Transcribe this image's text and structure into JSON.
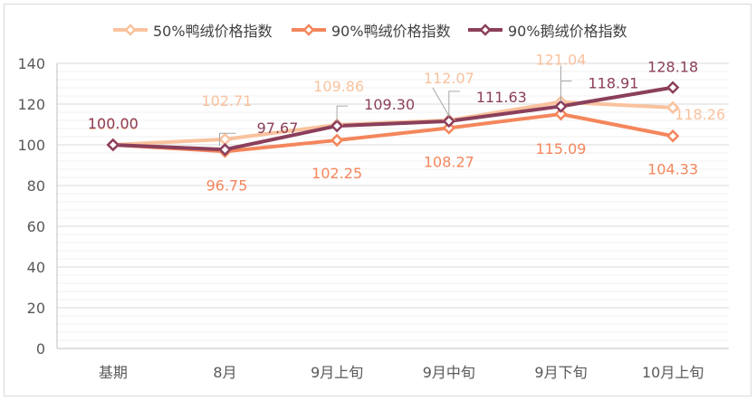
{
  "chart_data": {
    "type": "line",
    "categories": [
      "基期",
      "8月",
      "9月上旬",
      "9月中旬",
      "9月下旬",
      "10月上旬"
    ],
    "series": [
      {
        "name": "50%鸭绒价格指数",
        "values": [
          100.0,
          102.71,
          109.86,
          112.07,
          121.04,
          118.26
        ],
        "color": "#f9c29e"
      },
      {
        "name": "90%鸭绒价格指数",
        "values": [
          100.0,
          96.75,
          102.25,
          108.27,
          115.09,
          104.33
        ],
        "color": "#f4865c"
      },
      {
        "name": "90%鹅绒价格指数",
        "values": [
          100.0,
          97.67,
          109.3,
          111.63,
          118.91,
          128.18
        ],
        "color": "#8b3f5b"
      }
    ],
    "ylim": [
      0,
      140
    ],
    "yticks": [
      0,
      20,
      40,
      60,
      80,
      100,
      120,
      140
    ],
    "grid": true,
    "legend_position": "top",
    "title": "",
    "xlabel": "",
    "ylabel": ""
  }
}
